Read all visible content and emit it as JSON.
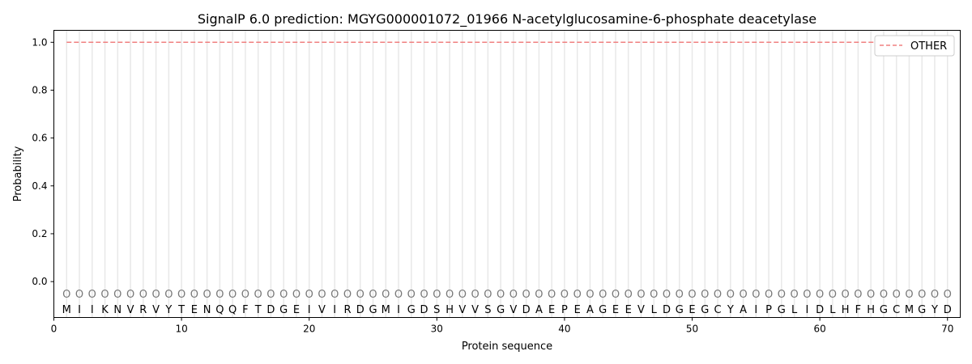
{
  "chart_data": {
    "type": "line",
    "title": "SignalP 6.0 prediction: MGYG000001072_01966 N-acetylglucosamine-6-phosphate deacetylase",
    "xlabel": "Protein sequence",
    "ylabel": "Probability",
    "xlim": [
      0,
      71
    ],
    "ylim": [
      -0.15,
      1.05
    ],
    "xticks": [
      0,
      10,
      20,
      30,
      40,
      50,
      60,
      70
    ],
    "yticks": [
      0.0,
      0.2,
      0.4,
      0.6,
      0.8,
      1.0
    ],
    "ytick_labels": [
      "0.0",
      "0.2",
      "0.4",
      "0.6",
      "0.8",
      "1.0"
    ],
    "grid": "vertical lines at each residue",
    "legend_placement": "top-right",
    "sequence": "MIIKNVRVYTENQQFTDGEIVIRDGMIGDSHVVSGVDAEPEAGEEVLDGEGCYAIPGLIDLHFHGCMGYD",
    "prediction_label": "O",
    "series": [
      {
        "name": "OTHER",
        "color": "#f08080",
        "style": "dashed",
        "x_range": [
          1,
          70
        ],
        "value": 1.0
      }
    ]
  }
}
